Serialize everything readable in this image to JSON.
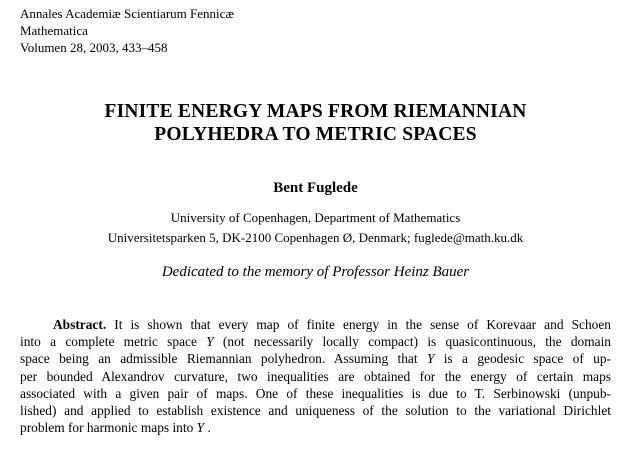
{
  "journal": {
    "line1": "Annales Academiæ Scientiarum Fennicæ",
    "line2": "Mathematica",
    "line3": "Volumen 28, 2003, 433–458"
  },
  "title": {
    "line1": "FINITE ENERGY MAPS FROM RIEMANNIAN",
    "line2": "POLYHEDRA TO METRIC SPACES"
  },
  "author": "Bent Fuglede",
  "affiliation": {
    "line1": "University of Copenhagen, Department of Mathematics",
    "line2": "Universitetsparken 5, DK-2100 Copenhagen Ø, Denmark; fuglede@math.ku.dk"
  },
  "dedication": "Dedicated to the memory of Professor Heinz Bauer",
  "abstract": {
    "label": "Abstract.",
    "l1": " It is shown that every map of finite energy in the sense of Korevaar and Schoen",
    "l2a": "into a complete metric space ",
    "l2y": "Y",
    "l2b": " (not necessarily locally compact) is quasicontinuous, the domain",
    "l3a": "space being an admissible Riemannian polyhedron. Assuming that ",
    "l3y": "Y",
    "l3b": " is a geodesic space of up-",
    "l4": "per bounded Alexandrov curvature, two inequalities are obtained for the energy of certain maps",
    "l5": "associated with a given pair of maps. One of these inequalities is due to T. Serbinowski (unpub-",
    "l6": "lished) and applied to establish existence and uniqueness of the solution to the variational Dirichlet",
    "l7a": "problem for harmonic maps into ",
    "l7y": "Y",
    "l7b": " ."
  }
}
